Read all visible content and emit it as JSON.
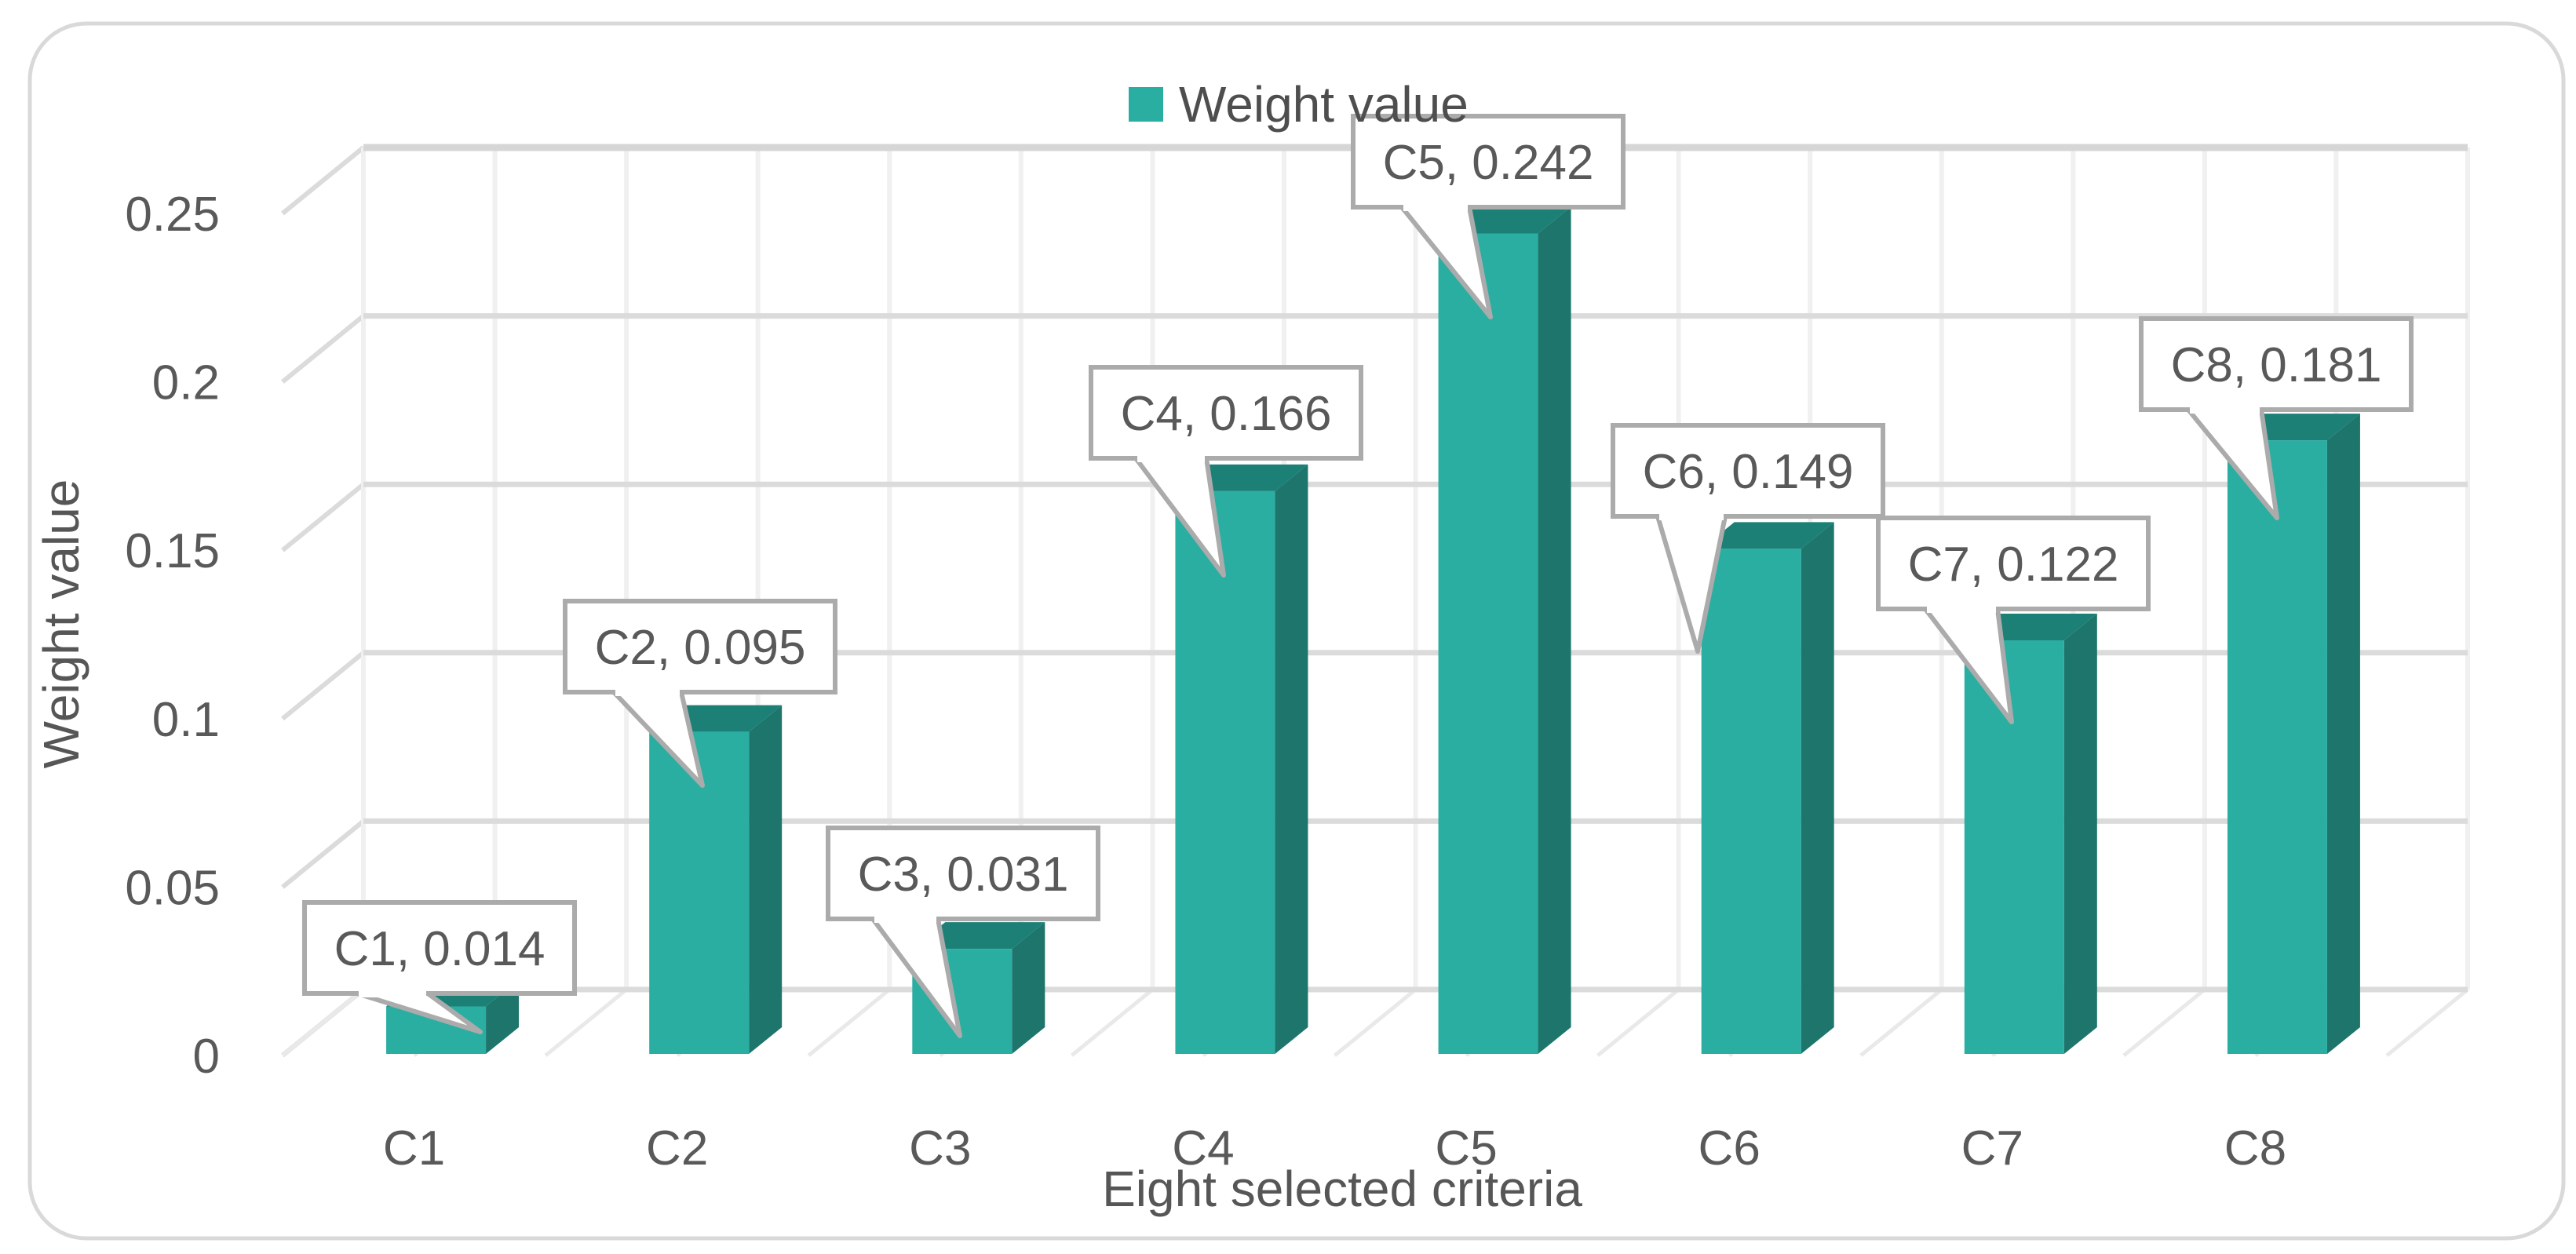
{
  "chart_data": {
    "type": "bar",
    "projection": "3d",
    "title": "",
    "series_name": "Weight value",
    "xlabel": "Eight selected criteria",
    "ylabel": "Weight value",
    "categories": [
      "C1",
      "C2",
      "C3",
      "C4",
      "C5",
      "C6",
      "C7",
      "C8"
    ],
    "values": [
      0.014,
      0.095,
      0.031,
      0.166,
      0.242,
      0.149,
      0.122,
      0.181
    ],
    "data_labels": [
      "C1, 0.014",
      "C2, 0.095",
      "C3, 0.031",
      "C4, 0.166",
      "C5, 0.242",
      "C6, 0.149",
      "C7, 0.122",
      "C8, 0.181"
    ],
    "ylim": [
      0,
      0.25
    ],
    "ytick_step": 0.05,
    "yticks": [
      "0",
      "0.05",
      "0.1",
      "0.15",
      "0.2",
      "0.25"
    ],
    "grid": true,
    "legend_position": "top-center"
  },
  "legend": {
    "label": "Weight value"
  },
  "colors": {
    "bar_front": "#2BAEA2",
    "bar_side": "#1E756C",
    "bar_top": "#1D8077",
    "grid_horizontal": "#DBDBDB",
    "grid_horizontal_top": "#D6D6D6",
    "grid_vertical": "#F0F0F0",
    "floor_line": "#E9E9E9",
    "wall_diag": "#DBDBDB",
    "frame_border": "#D9D9D9",
    "callout_border": "#ABABAB",
    "callout_fill": "#FFFFFF",
    "text": "#595959"
  }
}
